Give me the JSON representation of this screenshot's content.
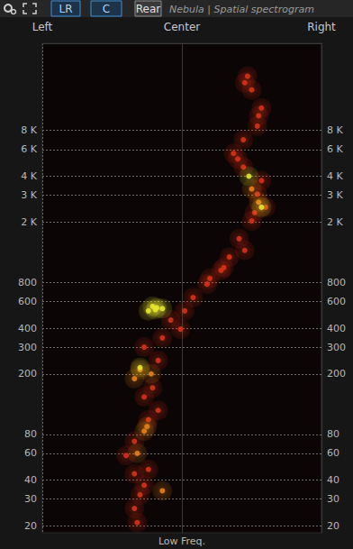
{
  "chart_data": {
    "type": "scatter",
    "title": "Nebula | Spatial spectrogram",
    "buttons": [
      "LR",
      "C",
      "Rear"
    ],
    "xlabel": "Low Freq.",
    "xlim": [
      -1,
      1
    ],
    "xticks": [
      {
        "value": -1,
        "label": "Left"
      },
      {
        "value": 0,
        "label": "Center"
      },
      {
        "value": 1,
        "label": "Right"
      }
    ],
    "ylim": [
      18,
      30000
    ],
    "yticks": [
      20,
      30,
      40,
      60,
      80,
      200,
      300,
      400,
      600,
      800,
      {
        "value": 2000,
        "label": "2 K"
      },
      {
        "value": 3000,
        "label": "3 K"
      },
      {
        "value": 4000,
        "label": "4 K"
      },
      {
        "value": 6000,
        "label": "6 K"
      },
      {
        "value": 8000,
        "label": "8 K"
      }
    ],
    "log": "y",
    "grid": true,
    "series": [
      {
        "color": "#d8321a",
        "x": [
          -0.32,
          -0.34,
          -0.3,
          -0.27,
          -0.34,
          -0.24,
          -0.4,
          -0.34,
          -0.24,
          -0.17,
          -0.27,
          -0.21,
          -0.17,
          -0.27,
          -0.14,
          -0.01,
          -0.08,
          0.02,
          0.08,
          0.18,
          0.28,
          0.34,
          0.41,
          0.5,
          0.54,
          0.57,
          0.44,
          0.37,
          0.44,
          0.54,
          0.57,
          0.5,
          0.47,
          0.6,
          0.3,
          0.45,
          0.52,
          0.4,
          0.55,
          0.45,
          0.2
        ],
        "values": [
          21,
          26,
          32,
          37,
          44,
          47,
          58,
          72,
          100,
          115,
          141,
          162,
          245,
          300,
          345,
          394,
          452,
          520,
          636,
          780,
          960,
          1175,
          1550,
          2030,
          3050,
          3740,
          4600,
          5650,
          6950,
          8540,
          11250,
          14800,
          18200,
          2500,
          1000,
          1300,
          2300,
          5200,
          10000,
          16500,
          850
        ]
      },
      {
        "color": "#e8801a",
        "x": [
          -0.14,
          -0.27,
          -0.34,
          -0.3,
          -0.22,
          0.55,
          -0.32,
          -0.25,
          0.5
        ],
        "values": [
          34,
          84,
          186,
          213,
          200,
          2700,
          60,
          90,
          3300
        ]
      },
      {
        "color": "#e6e632",
        "x": [
          -0.21,
          -0.24,
          -0.14,
          -0.18,
          0.57,
          0.48,
          -0.3,
          -0.19
        ],
        "values": [
          557,
          520,
          538,
          545,
          2500,
          4000,
          220,
          530
        ]
      }
    ]
  }
}
